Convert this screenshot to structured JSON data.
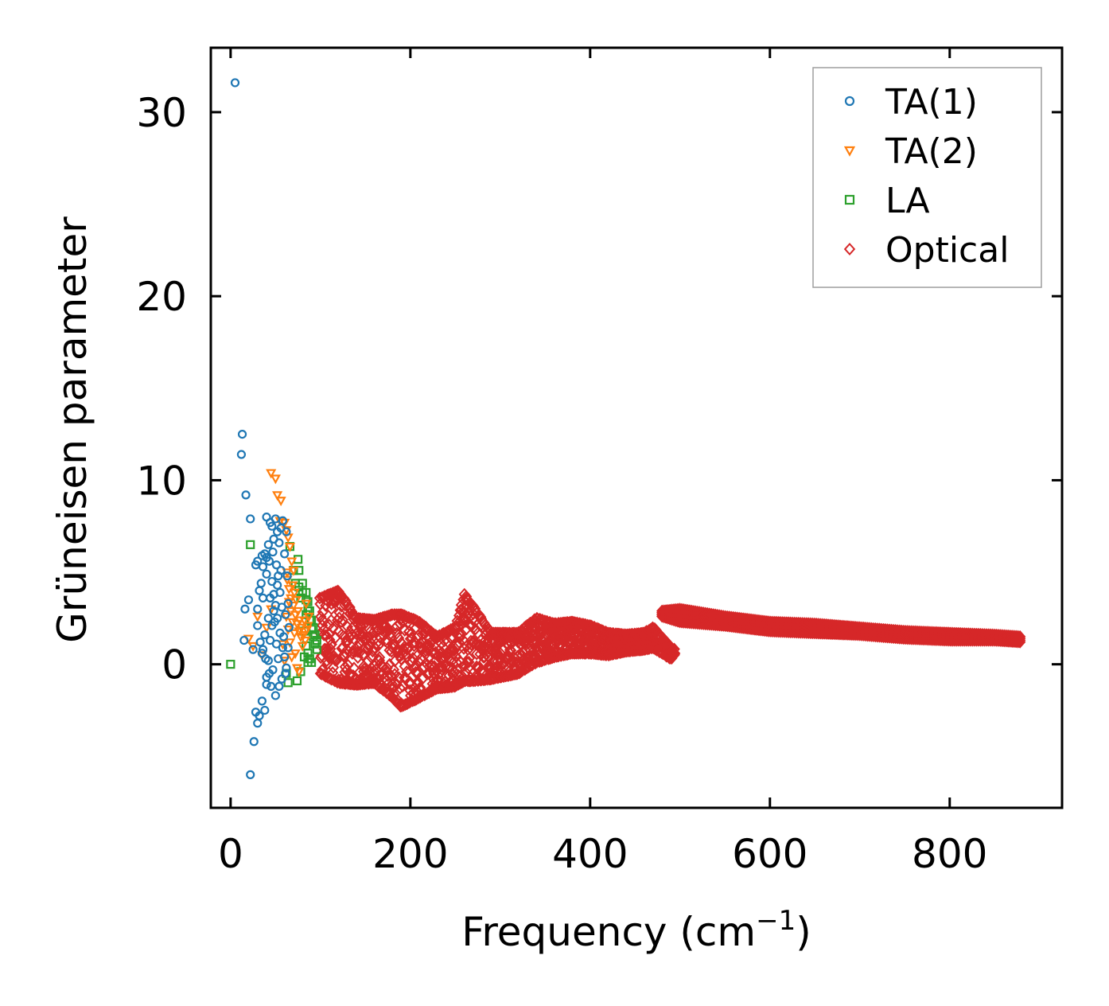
{
  "chart_data": {
    "type": "scatter",
    "xlabel": "Frequency (cm",
    "xlabel_sup": "−1",
    "xlabel_close": ")",
    "ylabel": "Grüneisen parameter",
    "xlim": [
      -22,
      925
    ],
    "ylim": [
      -7.8,
      33.5
    ],
    "xticks": [
      0,
      200,
      400,
      600,
      800
    ],
    "yticks": [
      0,
      10,
      20,
      30
    ],
    "xtick_labels": [
      "0",
      "200",
      "400",
      "600",
      "800"
    ],
    "ytick_labels": [
      "0",
      "10",
      "20",
      "30"
    ],
    "legend_position": "top-right",
    "series": [
      {
        "name": "TA(1)",
        "marker": "circle",
        "color": "#1f77b4",
        "points": [
          [
            5,
            31.6
          ],
          [
            13,
            12.5
          ],
          [
            12,
            11.4
          ],
          [
            17,
            9.2
          ],
          [
            22,
            7.9
          ],
          [
            16,
            3.0
          ],
          [
            20,
            3.5
          ],
          [
            15,
            1.3
          ],
          [
            25,
            0.8
          ],
          [
            28,
            5.4
          ],
          [
            30,
            5.6
          ],
          [
            32,
            4.0
          ],
          [
            30,
            3.0
          ],
          [
            35,
            5.9
          ],
          [
            36,
            5.3
          ],
          [
            38,
            6.0
          ],
          [
            40,
            5.8
          ],
          [
            42,
            6.5
          ],
          [
            44,
            7.7
          ],
          [
            40,
            8.0
          ],
          [
            46,
            7.5
          ],
          [
            48,
            6.8
          ],
          [
            50,
            7.9
          ],
          [
            52,
            7.2
          ],
          [
            54,
            6.6
          ],
          [
            56,
            7.4
          ],
          [
            58,
            7.8
          ],
          [
            46,
            4.5
          ],
          [
            48,
            3.8
          ],
          [
            50,
            3.2
          ],
          [
            52,
            2.5
          ],
          [
            55,
            1.7
          ],
          [
            58,
            0.9
          ],
          [
            60,
            0.4
          ],
          [
            62,
            -0.2
          ],
          [
            57,
            -0.8
          ],
          [
            54,
            -1.2
          ],
          [
            50,
            -1.7
          ],
          [
            45,
            -1.2
          ],
          [
            40,
            -1.1
          ],
          [
            38,
            -2.5
          ],
          [
            35,
            -2.0
          ],
          [
            30,
            -3.2
          ],
          [
            32,
            -2.8
          ],
          [
            28,
            -2.6
          ],
          [
            26,
            -4.2
          ],
          [
            22,
            -6.0
          ],
          [
            40,
            -0.7
          ],
          [
            42,
            0.2
          ],
          [
            44,
            1.3
          ],
          [
            46,
            2.1
          ],
          [
            48,
            2.9
          ],
          [
            52,
            4.3
          ],
          [
            56,
            5.1
          ],
          [
            60,
            6.0
          ],
          [
            62,
            7.2
          ],
          [
            64,
            3.3
          ],
          [
            63,
            4.8
          ],
          [
            61,
            2.7
          ],
          [
            59,
            1.5
          ],
          [
            30,
            2.1
          ],
          [
            33,
            1.2
          ],
          [
            36,
            0.8
          ],
          [
            38,
            1.6
          ],
          [
            42,
            2.5
          ],
          [
            44,
            3.6
          ],
          [
            36,
            3.6
          ],
          [
            34,
            4.4
          ],
          [
            40,
            4.9
          ],
          [
            43,
            5.6
          ],
          [
            47,
            6.1
          ],
          [
            51,
            5.4
          ],
          [
            53,
            4.8
          ],
          [
            55,
            3.9
          ],
          [
            57,
            3.1
          ],
          [
            49,
            2.3
          ],
          [
            51,
            1.1
          ],
          [
            53,
            0.3
          ],
          [
            47,
            -0.3
          ],
          [
            43,
            -0.5
          ],
          [
            39,
            0.3
          ],
          [
            35,
            0.6
          ],
          [
            61,
            -0.5
          ],
          [
            64,
            0.9
          ],
          [
            65,
            2.0
          ]
        ]
      },
      {
        "name": "TA(2)",
        "marker": "triangle-down",
        "color": "#ff7f0e",
        "points": [
          [
            45,
            10.4
          ],
          [
            50,
            10.1
          ],
          [
            52,
            9.2
          ],
          [
            56,
            8.9
          ],
          [
            55,
            7.8
          ],
          [
            60,
            7.7
          ],
          [
            62,
            7.3
          ],
          [
            64,
            6.9
          ],
          [
            66,
            6.4
          ],
          [
            68,
            5.6
          ],
          [
            70,
            5.1
          ],
          [
            63,
            4.6
          ],
          [
            65,
            4.1
          ],
          [
            67,
            3.6
          ],
          [
            70,
            3.2
          ],
          [
            72,
            2.7
          ],
          [
            74,
            2.2
          ],
          [
            76,
            1.8
          ],
          [
            78,
            1.5
          ],
          [
            80,
            1.0
          ],
          [
            72,
            0.6
          ],
          [
            74,
            -0.2
          ],
          [
            76,
            -0.4
          ],
          [
            68,
            0.4
          ],
          [
            66,
            1.2
          ],
          [
            64,
            1.9
          ],
          [
            62,
            2.6
          ],
          [
            58,
            1.1
          ],
          [
            60,
            0.2
          ],
          [
            20,
            1.4
          ],
          [
            25,
            1.0
          ],
          [
            30,
            2.6
          ],
          [
            35,
            0.5
          ],
          [
            40,
            2.0
          ],
          [
            45,
            3.0
          ],
          [
            82,
            2.4
          ],
          [
            84,
            3.3
          ],
          [
            86,
            2.1
          ],
          [
            69,
            4.3
          ],
          [
            71,
            3.9
          ],
          [
            73,
            3.5
          ],
          [
            75,
            2.9
          ],
          [
            77,
            2.4
          ],
          [
            79,
            2.0
          ],
          [
            81,
            1.6
          ],
          [
            83,
            1.3
          ],
          [
            85,
            1.9
          ],
          [
            87,
            2.6
          ],
          [
            71,
            1.7
          ],
          [
            69,
            2.3
          ],
          [
            67,
            2.9
          ],
          [
            65,
            3.4
          ],
          [
            63,
            5.0
          ]
        ]
      },
      {
        "name": "LA",
        "marker": "square",
        "color": "#2ca02c",
        "points": [
          [
            0,
            0.0
          ],
          [
            22,
            6.5
          ],
          [
            75,
            5.7
          ],
          [
            70,
            5.1
          ],
          [
            72,
            4.4
          ],
          [
            80,
            3.9
          ],
          [
            84,
            3.5
          ],
          [
            86,
            2.9
          ],
          [
            88,
            2.4
          ],
          [
            90,
            1.9
          ],
          [
            92,
            1.5
          ],
          [
            94,
            1.1
          ],
          [
            96,
            0.8
          ],
          [
            82,
            0.4
          ],
          [
            86,
            0.1
          ],
          [
            78,
            -0.4
          ],
          [
            74,
            -0.9
          ],
          [
            64,
            -1.0
          ],
          [
            62,
            -0.5
          ],
          [
            66,
            6.4
          ],
          [
            76,
            5.1
          ],
          [
            80,
            4.4
          ],
          [
            84,
            3.9
          ],
          [
            86,
            3.4
          ],
          [
            88,
            2.9
          ],
          [
            90,
            2.4
          ],
          [
            92,
            2.0
          ],
          [
            94,
            1.6
          ],
          [
            96,
            1.3
          ],
          [
            84,
            1.0
          ],
          [
            86,
            0.6
          ],
          [
            88,
            0.3
          ],
          [
            90,
            0.1
          ],
          [
            82,
            1.8
          ],
          [
            84,
            2.7
          ],
          [
            78,
            3.6
          ],
          [
            76,
            4.2
          ]
        ]
      },
      {
        "name": "Optical",
        "marker": "diamond",
        "color": "#d62728",
        "envelope": [
          [
            100,
            3.6,
            -0.5
          ],
          [
            120,
            4.0,
            -1.0
          ],
          [
            140,
            2.5,
            -1.1
          ],
          [
            160,
            2.4,
            -1.0
          ],
          [
            180,
            2.7,
            -1.8
          ],
          [
            190,
            2.7,
            -2.3
          ],
          [
            210,
            2.3,
            -1.8
          ],
          [
            230,
            1.5,
            -1.3
          ],
          [
            250,
            2.0,
            -1.2
          ],
          [
            260,
            3.8,
            -0.9
          ],
          [
            270,
            3.1,
            -0.9
          ],
          [
            290,
            1.7,
            -0.8
          ],
          [
            320,
            1.7,
            -0.5
          ],
          [
            340,
            2.5,
            0.1
          ],
          [
            360,
            2.2,
            0.4
          ],
          [
            380,
            2.3,
            0.6
          ],
          [
            400,
            2.1,
            0.6
          ],
          [
            420,
            1.7,
            0.5
          ],
          [
            440,
            1.6,
            0.7
          ],
          [
            460,
            1.7,
            0.8
          ],
          [
            470,
            2.0,
            0.9
          ],
          [
            490,
            0.9,
            0.3
          ],
          [
            495,
            0.8,
            0.6
          ]
        ],
        "band_upper": [
          [
            480,
            2.9
          ],
          [
            500,
            3.0
          ],
          [
            550,
            2.6
          ],
          [
            600,
            2.3
          ],
          [
            650,
            2.2
          ],
          [
            700,
            2.0
          ],
          [
            750,
            1.8
          ],
          [
            800,
            1.7
          ],
          [
            850,
            1.6
          ],
          [
            880,
            1.5
          ]
        ],
        "band_lower": [
          [
            480,
            2.6
          ],
          [
            500,
            2.3
          ],
          [
            550,
            2.1
          ],
          [
            600,
            1.8
          ],
          [
            650,
            1.7
          ],
          [
            700,
            1.6
          ],
          [
            750,
            1.4
          ],
          [
            800,
            1.3
          ],
          [
            850,
            1.3
          ],
          [
            880,
            1.2
          ]
        ]
      }
    ]
  }
}
